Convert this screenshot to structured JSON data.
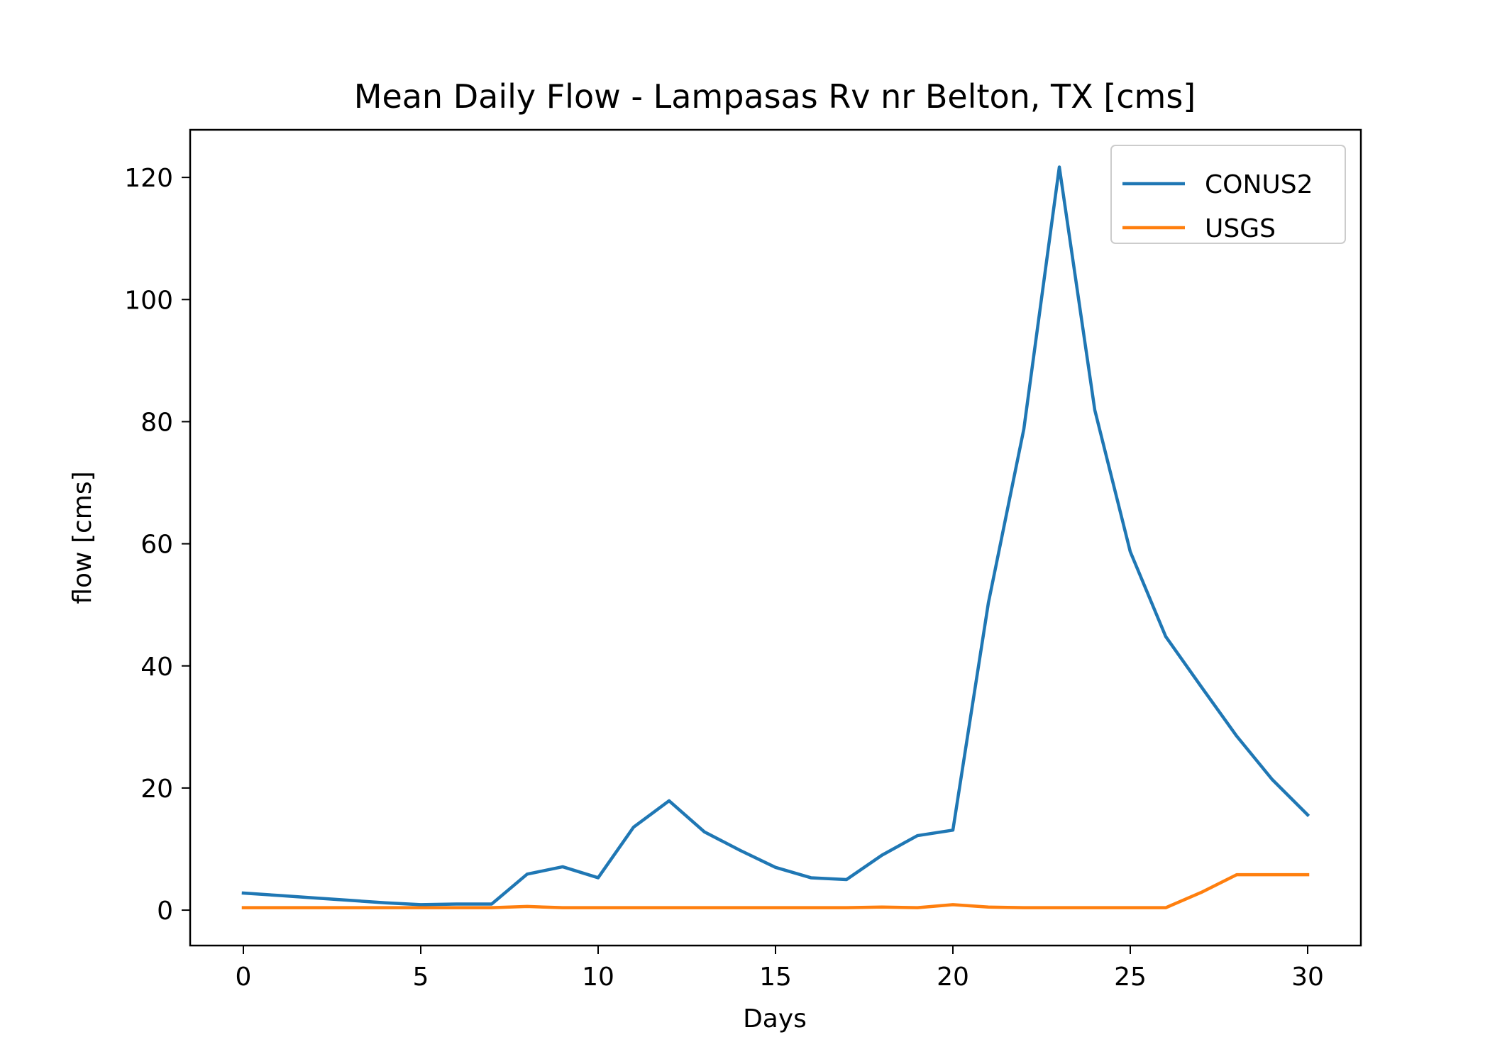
{
  "chart_data": {
    "type": "line",
    "title": "Mean Daily Flow - Lampasas Rv nr Belton, TX [cms]",
    "xlabel": "Days",
    "ylabel": "flow [cms]",
    "xlim": [
      -1.5,
      31.5
    ],
    "ylim": [
      -5.8,
      127.8
    ],
    "xticks": [
      0,
      5,
      10,
      15,
      20,
      25,
      30
    ],
    "yticks": [
      0,
      20,
      40,
      60,
      80,
      100,
      120
    ],
    "grid": false,
    "legend_position": "top-right",
    "x": [
      0,
      1,
      2,
      3,
      4,
      5,
      6,
      7,
      8,
      9,
      10,
      11,
      12,
      13,
      14,
      15,
      16,
      17,
      18,
      19,
      20,
      21,
      22,
      23,
      24,
      25,
      26,
      27,
      28,
      29,
      30
    ],
    "series": [
      {
        "name": "CONUS2",
        "color": "#1f77b4",
        "values": [
          2.8,
          2.4,
          2.0,
          1.6,
          1.2,
          0.9,
          1.0,
          1.0,
          5.9,
          7.1,
          5.3,
          13.6,
          17.9,
          12.8,
          9.8,
          7.0,
          5.3,
          5.0,
          9.0,
          12.2,
          13.1,
          50.3,
          78.8,
          121.7,
          81.9,
          58.7,
          44.8,
          36.6,
          28.5,
          21.4,
          15.6
        ]
      },
      {
        "name": "USGS",
        "color": "#ff7f0e",
        "values": [
          0.4,
          0.4,
          0.4,
          0.4,
          0.4,
          0.4,
          0.4,
          0.4,
          0.6,
          0.4,
          0.4,
          0.4,
          0.4,
          0.4,
          0.4,
          0.4,
          0.4,
          0.4,
          0.5,
          0.4,
          0.9,
          0.5,
          0.4,
          0.4,
          0.4,
          0.4,
          0.4,
          2.9,
          5.8,
          5.8,
          5.8
        ]
      }
    ]
  }
}
